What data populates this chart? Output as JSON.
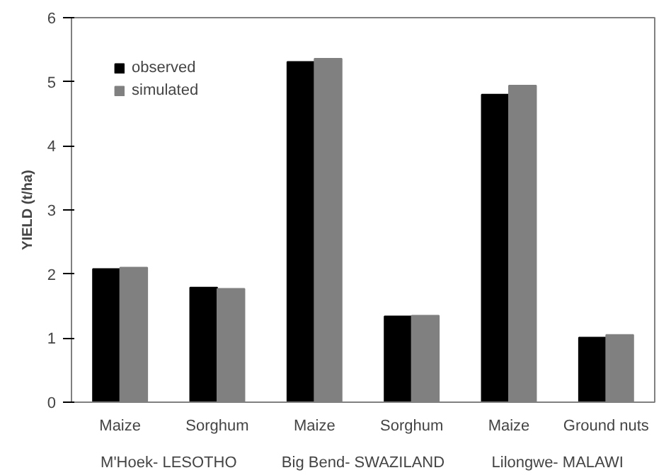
{
  "chart_data": {
    "type": "bar",
    "ylabel": "YIELD (t/ha)",
    "categories": [
      "Maize",
      "Sorghum",
      "Maize",
      "Sorghum",
      "Maize",
      "Ground nuts"
    ],
    "series": [
      {
        "name": "observed",
        "color": "#000000",
        "values": [
          2.08,
          1.79,
          5.31,
          1.34,
          4.8,
          1.01
        ]
      },
      {
        "name": "simulated",
        "color": "#808080",
        "values": [
          2.1,
          1.77,
          5.36,
          1.35,
          4.94,
          1.05
        ]
      }
    ],
    "annotations": [
      "M'Hoek- LESOTHO",
      "Big Bend- SWAZILAND",
      "Lilongwe- MALAWI"
    ],
    "ylim": [
      0,
      6
    ],
    "yticks": [
      0,
      1,
      2,
      3,
      4,
      5,
      6
    ],
    "grid": false,
    "legend": "top left"
  }
}
